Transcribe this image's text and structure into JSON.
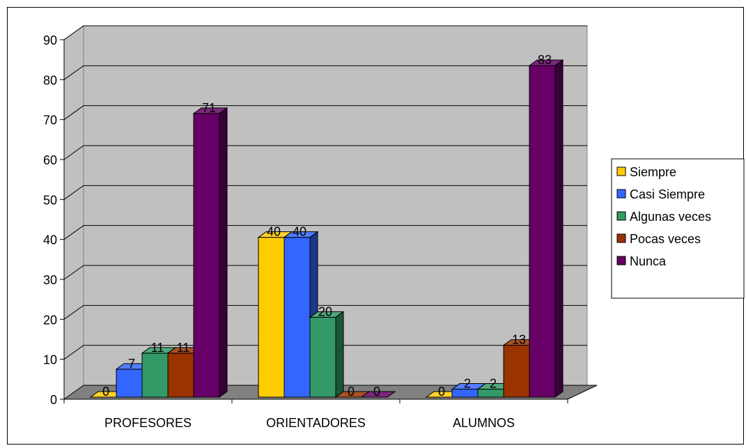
{
  "chart_data": {
    "type": "bar",
    "three_d": true,
    "categories": [
      "PROFESORES",
      "ORIENTADORES",
      "ALUMNOS"
    ],
    "series": [
      {
        "name": "Siempre",
        "values": [
          0,
          40,
          0
        ],
        "color": "#ffcc00"
      },
      {
        "name": "Casi Siempre",
        "values": [
          7,
          40,
          2
        ],
        "color": "#3366ff"
      },
      {
        "name": "Algunas veces",
        "values": [
          11,
          20,
          2
        ],
        "color": "#339966"
      },
      {
        "name": "Pocas veces",
        "values": [
          11,
          0,
          13
        ],
        "color": "#993300"
      },
      {
        "name": "Nunca",
        "values": [
          71,
          0,
          83
        ],
        "color": "#660066"
      }
    ],
    "ylim": [
      0,
      90
    ],
    "yticks": [
      0,
      10,
      20,
      30,
      40,
      50,
      60,
      70,
      80,
      90
    ],
    "grid": true,
    "legend_position": "right",
    "data_labels": true,
    "wall_color": "#c0c0c0",
    "floor_color": "#808080"
  }
}
